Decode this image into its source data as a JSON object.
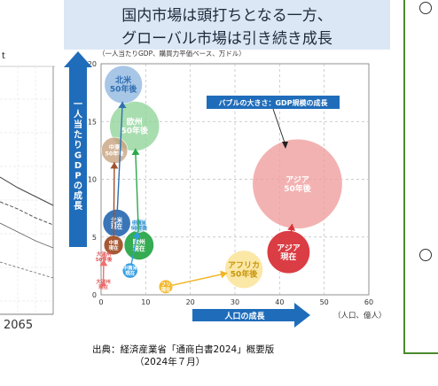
{
  "title": {
    "line1": "国内市場は頭打ちとなる一方、",
    "line2": "グローバル市場は引き続き成長"
  },
  "left_fragment": {
    "label": "t",
    "year": "2065"
  },
  "source": {
    "line1": "出典：経済産業省「通商白書2024」概要版",
    "line2": "（2024年７月）"
  },
  "chart_data": {
    "type": "bubble",
    "note": "（一人当たりGDP、購買力平価ベース、万ドル）",
    "ylabel": "一人当たりGDPの成長",
    "xlabel": "人口の成長",
    "x_unit": "（人口、億人）",
    "xlim": [
      0,
      60
    ],
    "ylim": [
      0,
      20
    ],
    "xticks": [
      0,
      10,
      20,
      30,
      40,
      50,
      60
    ],
    "yticks": [
      0,
      5,
      10,
      15,
      20
    ],
    "grid": true,
    "legend_callout": "バブルの大きさ：GDP規模の成長",
    "bubbles": [
      {
        "label": "北米\n50年後",
        "x": 5.0,
        "y": 18.2,
        "size": 5.5,
        "color": "#8fb6df",
        "text_color": "#2f6fb3"
      },
      {
        "label": "欧州\n50年後",
        "x": 7.5,
        "y": 14.6,
        "size": 7.2,
        "color": "#8fd39a",
        "text_color": "#ffffff"
      },
      {
        "label": "中東\n50年後",
        "x": 3.0,
        "y": 12.5,
        "size": 3.8,
        "color": "#c6a07e",
        "text_color": "#ffffff"
      },
      {
        "label": "北米\n現在",
        "x": 3.5,
        "y": 6.2,
        "size": 4.0,
        "color": "#2f6fb3",
        "text_color": "#ffffff"
      },
      {
        "label": "中南米\n50年後",
        "x": 8.5,
        "y": 6.0,
        "size": 2.0,
        "color": "#b9dcf2",
        "text_color": "#2f8fd0"
      },
      {
        "label": "欧州\n現在",
        "x": 8.5,
        "y": 4.3,
        "size": 4.3,
        "color": "#2aa84a",
        "text_color": "#ffffff"
      },
      {
        "label": "中東\n現在",
        "x": 2.8,
        "y": 4.3,
        "size": 2.8,
        "color": "#a1502a",
        "text_color": "#ffffff"
      },
      {
        "label": "中南米\n現在",
        "x": 6.5,
        "y": 2.1,
        "size": 2.2,
        "color": "#2f9be0",
        "text_color": "#ffffff"
      },
      {
        "label": "大洋州\n50年後",
        "x": 0.6,
        "y": 3.3,
        "size": 0.9,
        "color": "#f5a0a0",
        "text_color": "#e25555"
      },
      {
        "label": "大洋州\n現在",
        "x": 0.5,
        "y": 0.9,
        "size": 0.7,
        "color": "#f07070",
        "text_color": "#e25555"
      },
      {
        "label": "アジア\n50年後",
        "x": 44.0,
        "y": 9.6,
        "size": 13.0,
        "color": "#ef9c9c",
        "text_color": "#ffffff"
      },
      {
        "label": "アジア\n現在",
        "x": 42.0,
        "y": 3.7,
        "size": 6.2,
        "color": "#d8333a",
        "text_color": "#ffffff"
      },
      {
        "label": "アフリカ\n50年後",
        "x": 32.0,
        "y": 2.2,
        "size": 5.5,
        "color": "#fbe7a2",
        "text_color": "#c8940a"
      },
      {
        "label": "アフリカ\n現在",
        "x": 14.5,
        "y": 0.7,
        "size": 2.0,
        "color": "#f2b422",
        "text_color": "#ffffff"
      }
    ]
  }
}
